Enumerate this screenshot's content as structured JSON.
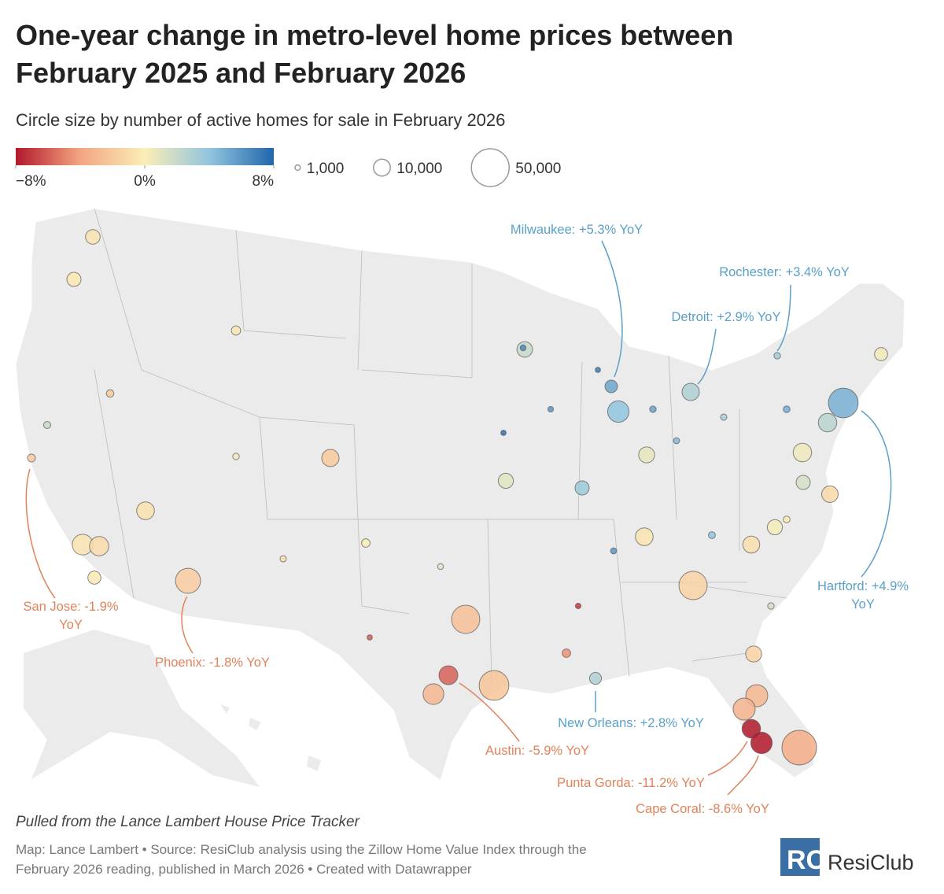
{
  "title": "One-year change in metro-level home prices between February 2025 and February 2026",
  "subtitle": "Circle size by number of active homes for sale in February 2026",
  "legend": {
    "color_ticks": [
      {
        "value": -8,
        "label": "−8%"
      },
      {
        "value": 0,
        "label": "0%"
      },
      {
        "value": 8,
        "label": "8%"
      }
    ],
    "colors": [
      "#b2182b",
      "#f4a582",
      "#fbeeb8",
      "#92c5de",
      "#2166ac"
    ],
    "sizes": [
      {
        "value": 1000,
        "label": "1,000"
      },
      {
        "value": 10000,
        "label": "10,000"
      },
      {
        "value": 50000,
        "label": "50,000"
      }
    ]
  },
  "metros": [
    {
      "label": [
        "Milwaukee: +5.3% YoY"
      ],
      "change": 5.3,
      "homes": 5500
    },
    {
      "label": [
        "Rochester: +3.4% YoY"
      ],
      "change": 3.4,
      "homes": 1500
    },
    {
      "label": [
        "Detroit: +2.9% YoY"
      ],
      "change": 2.9,
      "homes": 10500
    },
    {
      "label": [
        "Hartford: +4.9%",
        "YoY"
      ],
      "change": 4.9,
      "homes": 31000
    },
    {
      "label": [
        "New Orleans: +2.8% YoY"
      ],
      "change": 2.8,
      "homes": 5000
    },
    {
      "label": [
        "San Jose: -1.9%",
        "YoY"
      ],
      "change": -1.9,
      "homes": 2200
    },
    {
      "label": [
        "Phoenix: -1.8% YoY"
      ],
      "change": -1.8,
      "homes": 22000
    },
    {
      "label": [
        "Austin: -5.9% YoY"
      ],
      "change": -5.9,
      "homes": 12500
    },
    {
      "label": [
        "Punta Gorda: -11.2% YoY"
      ],
      "change": -11.2,
      "homes": 12000
    },
    {
      "label": [
        "Cape Coral: -8.6% YoY"
      ],
      "change": -8.6,
      "homes": 16000
    },
    {
      "change": -2.5,
      "homes": 28000
    },
    {
      "change": -2.2,
      "homes": 31000
    },
    {
      "change": -1.5,
      "homes": 28000
    },
    {
      "change": -3.5,
      "homes": 42000
    },
    {
      "change": -0.5,
      "homes": 15000
    },
    {
      "change": -0.3,
      "homes": 6000
    },
    {
      "change": -1.0,
      "homes": 13000
    },
    {
      "change": -0.6,
      "homes": 7500
    },
    {
      "change": -0.4,
      "homes": 7000
    },
    {
      "change": -2.0,
      "homes": 10500
    },
    {
      "change": 4.0,
      "homes": 16000
    },
    {
      "change": 2.5,
      "homes": 12000
    },
    {
      "change": 0.5,
      "homes": 12000
    },
    {
      "change": 1.5,
      "homes": 7000
    },
    {
      "change": -0.8,
      "homes": 10000
    },
    {
      "change": -3.0,
      "homes": 17000
    },
    {
      "change": -3.2,
      "homes": 17000
    },
    {
      "change": -1.5,
      "homes": 9000
    },
    {
      "change": -0.7,
      "homes": 11000
    },
    {
      "change": -3.0,
      "homes": 15000
    },
    {
      "change": -0.5,
      "homes": 11000
    },
    {
      "change": 2.0,
      "homes": 8500
    },
    {
      "change": 1.0,
      "homes": 8000
    },
    {
      "change": 3.5,
      "homes": 7000
    },
    {
      "change": 0.3,
      "homes": 6000
    },
    {
      "change": 0.8,
      "homes": 9000
    },
    {
      "change": -1.2,
      "homes": 9500
    },
    {
      "change": 0.2,
      "homes": 8000
    },
    {
      "change": 6.5,
      "homes": 1200
    },
    {
      "change": 7.0,
      "homes": 1000
    },
    {
      "change": 5.5,
      "homes": 1500
    },
    {
      "change": 6.0,
      "homes": 1100
    },
    {
      "change": 4.5,
      "homes": 1300
    },
    {
      "change": 3.0,
      "homes": 1400
    },
    {
      "change": 7.5,
      "homes": 1000
    },
    {
      "change": 5.0,
      "homes": 1600
    },
    {
      "change": -6.0,
      "homes": 1000
    },
    {
      "change": -7.0,
      "homes": 1100
    },
    {
      "change": 0.5,
      "homes": 1500
    },
    {
      "change": -1.0,
      "homes": 1400
    },
    {
      "change": 2.0,
      "homes": 1800
    },
    {
      "change": -2.0,
      "homes": 2000
    },
    {
      "change": 1.0,
      "homes": 1200
    },
    {
      "change": 6.0,
      "homes": 1300
    },
    {
      "change": 4.0,
      "homes": 1700
    },
    {
      "change": -0.5,
      "homes": 3000
    },
    {
      "change": 0.0,
      "homes": 2500
    },
    {
      "change": -4.5,
      "homes": 2500
    },
    {
      "change": 1.5,
      "homes": 1500
    },
    {
      "change": -0.2,
      "homes": 1600
    }
  ],
  "note": "Pulled from the Lance Lambert House Price Tracker",
  "source": [
    "Map: Lance Lambert • Source: ResiClub analysis using the Zillow Home Value Index through the",
    "February 2026 reading, published in March 2026 • Created with Datawrapper"
  ],
  "logo": "ResiClub"
}
